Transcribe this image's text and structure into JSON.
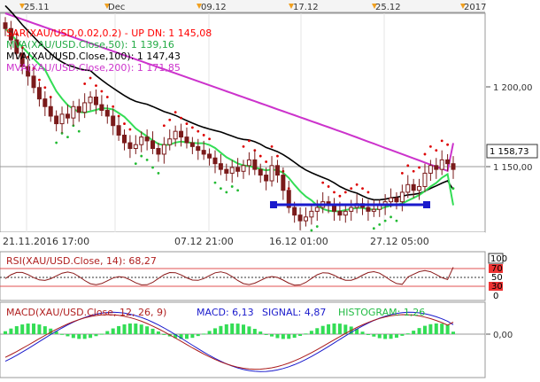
{
  "top_axis": {
    "labels": [
      "25.11",
      "Dec",
      "09.12",
      "17.12",
      "25.12",
      "2017"
    ]
  },
  "bottom_axis": {
    "labels": [
      "21.11.2016 17:00",
      "07.12 21:00",
      "16.12 01:00",
      "27.12 05:00"
    ]
  },
  "main_panel": {
    "legend": [
      {
        "text": "SAR(XAU/USD,0.02,0.2) - UP  DN: 1 145,08",
        "color": "#ff0000"
      },
      {
        "text": "MVA(XAU/USD.Close,50): 1 139,16",
        "color": "#22dd44"
      },
      {
        "text": "MVA(XAU/USD.Close,100): 1 147,43",
        "color": "#000000"
      },
      {
        "text": "MVA(XAU/USD.Close,200): 1 171,85",
        "color": "#cc33cc"
      }
    ],
    "price_ticks": [
      "1 200,00",
      "1 150,00"
    ],
    "last_price": "1 158,73"
  },
  "rsi_panel": {
    "legend": "RSI(XAU/USD.Close, 14): 68,27",
    "levels": [
      "100",
      "70",
      "50",
      "30",
      "0"
    ],
    "value": 68.27
  },
  "macd_panel": {
    "legend_name": "MACD(XAU/USD.Close, 12, 26, 9)",
    "macd_label": "MACD: 6,13",
    "signal_label": "SIGNAL: 4,87",
    "histogram_label": "HISTOGRAM: 1,26",
    "zero_label": "0,00",
    "macd_value": 6.13,
    "signal_value": 4.87,
    "histogram_value": 1.26
  },
  "chart_data": {
    "type": "candlestick",
    "instrument": "XAU/USD",
    "price_range": [
      1125,
      1240
    ],
    "closes": [
      1232,
      1226,
      1219,
      1212,
      1207,
      1201,
      1195,
      1191,
      1186,
      1182,
      1187,
      1185,
      1191,
      1188,
      1193,
      1196,
      1192,
      1189,
      1186,
      1181,
      1176,
      1172,
      1169,
      1171,
      1175,
      1173,
      1169,
      1166,
      1171,
      1174,
      1178,
      1175,
      1172,
      1170,
      1168,
      1166,
      1164,
      1161,
      1158,
      1156,
      1159,
      1157,
      1160,
      1163,
      1158,
      1155,
      1152,
      1160,
      1155,
      1147,
      1138,
      1134,
      1131,
      1133,
      1136,
      1138,
      1141,
      1139,
      1136,
      1134,
      1136,
      1138,
      1140,
      1138,
      1136,
      1137,
      1139,
      1141,
      1143,
      1141,
      1146,
      1150,
      1147,
      1149,
      1156,
      1160,
      1158,
      1163,
      1161,
      1158
    ],
    "series": [
      {
        "name": "MVA(XAU/USD.Close,50)",
        "last": 1139.16
      },
      {
        "name": "MVA(XAU/USD.Close,100)",
        "last": 1147.43
      },
      {
        "name": "MVA(XAU/USD.Close,200)",
        "last": 1171.85
      },
      {
        "name": "SAR(XAU/USD,0.02,0.2)",
        "last": 1145.08
      }
    ],
    "rsi": 68.27,
    "macd": 6.13,
    "signal": 4.87,
    "histogram": 1.26
  }
}
